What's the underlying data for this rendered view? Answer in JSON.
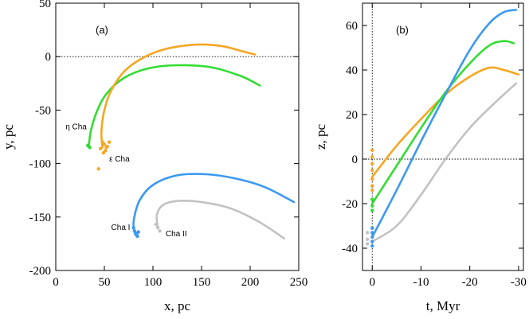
{
  "chart_data": [
    {
      "type": "line",
      "panel_label": "(a)",
      "xlabel": "x, pc",
      "ylabel": "y, pc",
      "xlim": [
        0,
        250
      ],
      "ylim": [
        -200,
        50
      ],
      "xticks": [
        0,
        50,
        100,
        150,
        200,
        250
      ],
      "yticks": [
        -200,
        -150,
        -100,
        -50,
        0,
        50
      ],
      "reference_line": {
        "y": 0,
        "style": "dotted"
      },
      "series": [
        {
          "name": "eta Cha",
          "color": "#33dd33",
          "x": [
            34,
            36,
            42,
            52,
            70,
            95,
            125,
            160,
            190,
            210
          ],
          "y": [
            -84,
            -70,
            -52,
            -35,
            -20,
            -11,
            -8,
            -10,
            -18,
            -27
          ]
        },
        {
          "name": "epsilon Cha",
          "color": "#f5a623",
          "x": [
            48,
            47,
            50,
            58,
            75,
            105,
            140,
            170,
            192,
            205
          ],
          "y": [
            -85,
            -70,
            -50,
            -30,
            -10,
            5,
            11,
            10,
            5,
            2
          ]
        },
        {
          "name": "Cha I",
          "color": "#3b99f0",
          "x": [
            82,
            80,
            86,
            100,
            125,
            155,
            185,
            215,
            245
          ],
          "y": [
            -167,
            -155,
            -135,
            -120,
            -111,
            -110,
            -114,
            -122,
            -136
          ]
        },
        {
          "name": "Cha II",
          "color": "#c2c2c2",
          "x": [
            105,
            104,
            110,
            125,
            150,
            180,
            210,
            235
          ],
          "y": [
            -160,
            -148,
            -139,
            -135,
            -136,
            -142,
            -155,
            -170
          ]
        }
      ],
      "scatter": [
        {
          "name": "epsilon Cha members",
          "color": "#f5a623",
          "x": [
            48,
            50,
            52,
            55,
            46,
            49,
            51,
            53,
            44
          ],
          "y": [
            -80,
            -82,
            -85,
            -80,
            -86,
            -90,
            -88,
            -84,
            -105
          ]
        },
        {
          "name": "eta Cha members",
          "color": "#33dd33",
          "x": [
            34,
            35,
            33
          ],
          "y": [
            -84,
            -85,
            -83
          ]
        },
        {
          "name": "Cha I members",
          "color": "#3b99f0",
          "x": [
            80,
            82,
            84,
            83,
            81,
            85
          ],
          "y": [
            -160,
            -165,
            -168,
            -166,
            -163,
            -164
          ]
        },
        {
          "name": "Cha II members",
          "color": "#c2c2c2",
          "x": [
            103,
            105,
            107
          ],
          "y": [
            -157,
            -160,
            -163
          ]
        }
      ],
      "annotations": [
        {
          "text": "η Cha",
          "x": 10,
          "y": -68
        },
        {
          "text": "ε Cha",
          "x": 55,
          "y": -98
        },
        {
          "text": "Cha I",
          "x": 57,
          "y": -162
        },
        {
          "text": "Cha II",
          "x": 113,
          "y": -168
        }
      ]
    },
    {
      "type": "line",
      "panel_label": "(b)",
      "xlabel": "t, Myr",
      "ylabel": "z, pc",
      "xlim": [
        2,
        -31
      ],
      "ylim": [
        -50,
        70
      ],
      "xticks": [
        0,
        -10,
        -20,
        -30
      ],
      "yticks": [
        -40,
        -20,
        0,
        20,
        40,
        60
      ],
      "reference_line": {
        "y": 0,
        "x": 0,
        "style": "dotted"
      },
      "series": [
        {
          "name": "epsilon Cha",
          "color": "#f5a623",
          "x": [
            0,
            -5,
            -10,
            -15,
            -20,
            -24,
            -27,
            -30
          ],
          "y": [
            -8,
            6,
            18,
            29,
            37,
            41,
            40,
            38
          ]
        },
        {
          "name": "eta Cha",
          "color": "#33dd33",
          "x": [
            0,
            -5,
            -10,
            -15,
            -20,
            -24,
            -27,
            -29
          ],
          "y": [
            -20,
            -3,
            14,
            30,
            43,
            51,
            53,
            52
          ]
        },
        {
          "name": "Cha I",
          "color": "#3b99f0",
          "x": [
            0,
            -5,
            -10,
            -15,
            -20,
            -24,
            -27,
            -29.5
          ],
          "y": [
            -35,
            -14,
            8,
            29,
            49,
            61,
            66,
            67
          ]
        },
        {
          "name": "Cha II",
          "color": "#c2c2c2",
          "x": [
            0,
            -5,
            -10,
            -15,
            -20,
            -25,
            -29.5
          ],
          "y": [
            -37,
            -30,
            -16,
            0,
            14,
            25,
            34
          ]
        }
      ],
      "scatter": [
        {
          "name": "epsilon Cha members",
          "color": "#f5a623",
          "x": [
            0,
            0,
            0,
            0,
            0,
            0,
            0
          ],
          "y": [
            4,
            1,
            -2,
            -5,
            -9,
            -12,
            -14
          ]
        },
        {
          "name": "eta Cha members",
          "color": "#33dd33",
          "x": [
            0,
            0,
            0
          ],
          "y": [
            -18,
            -21,
            -23
          ]
        },
        {
          "name": "Cha I members",
          "color": "#3b99f0",
          "x": [
            0,
            0,
            0,
            0,
            0
          ],
          "y": [
            -31,
            -33,
            -35,
            -37,
            -39
          ]
        },
        {
          "name": "Cha II members",
          "color": "#c2c2c2",
          "x": [
            1,
            1,
            1
          ],
          "y": [
            -33,
            -36,
            -38
          ]
        }
      ],
      "annotations": []
    }
  ]
}
